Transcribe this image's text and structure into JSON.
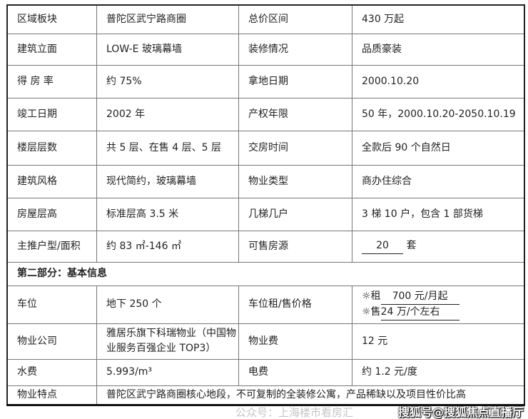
{
  "rows": [
    [
      "区域板块",
      "普陀区武宁路商圈",
      "总价区间",
      "430 万起"
    ],
    [
      "建筑立面",
      "LOW-E 玻璃幕墙",
      "装修情况",
      "品质豪装"
    ],
    [
      "得 房 率",
      "约 75%",
      "拿地日期",
      "2000.10.20"
    ],
    [
      "竣工日期",
      "2002 年",
      "产权年限",
      "50 年，2000.10.20-2050.10.19"
    ],
    [
      "楼层层数",
      "共 5 层、在售 4 层、5 层",
      "交房时间",
      "全款后 90 个自然日"
    ],
    [
      "建筑风格",
      "现代简约，玻璃幕墙",
      "物业类型",
      "商办住综合"
    ],
    [
      "房屋层高",
      "标准层高 3.5 米",
      "几梯几户",
      "3 梯 10 户，包含 1 部货梯"
    ],
    [
      "主推户型/面积",
      "约 83 ㎡-146 ㎡",
      "可售房源",
      ""
    ]
  ],
  "available_units": {
    "count": "20",
    "unit": "套"
  },
  "section_title": "第二部分：基本信息",
  "parking": {
    "label": "车位",
    "value": "地下 250 个",
    "price_label": "车位租/售价格",
    "rent_prefix": "☼租",
    "rent": "700 元/月起",
    "sale_prefix": "☼售",
    "sale": "24 万/个左右"
  },
  "rows2": [
    [
      "物业公司",
      "雅居乐旗下科瑞物业（中国物业服务百强企业 TOP3）",
      "物业费",
      "12 元"
    ],
    [
      "水费",
      "5.993/m³",
      "电费",
      "约 1.2 元/度"
    ]
  ],
  "feature": {
    "label": "物业特点",
    "value": "普陀区武宁路商圈核心地段，不可复制的全装修公寓，产品稀缺以及项目性价比高"
  },
  "watermarks": {
    "wechat": "公众号：上海楼市看房汇",
    "sohu": "搜狐号@搜狐焦点直播厅"
  }
}
